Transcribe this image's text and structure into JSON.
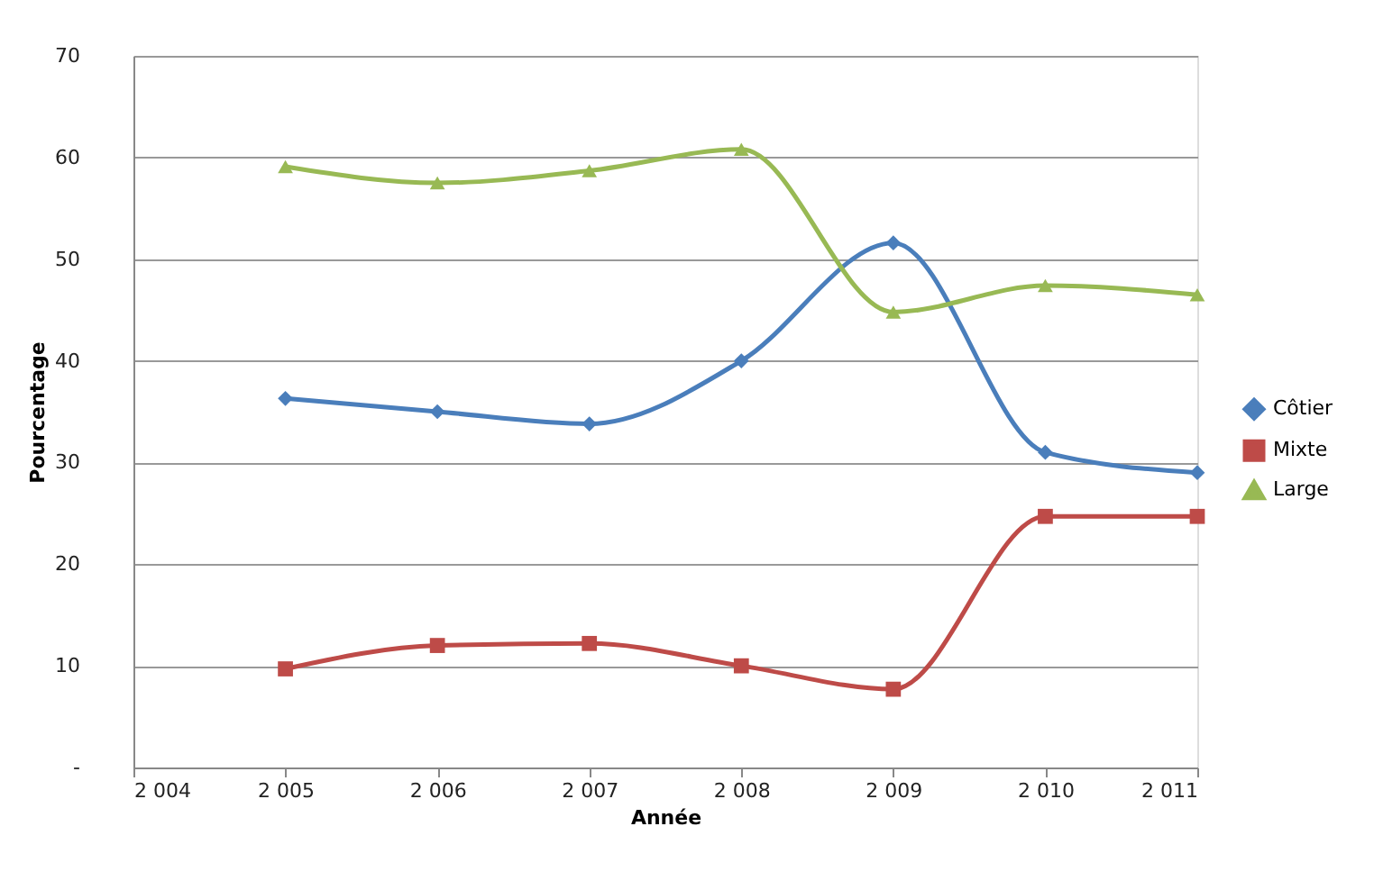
{
  "chart_data": {
    "type": "line",
    "xlabel": "Année",
    "ylabel": "Pourcentage",
    "x": [
      2005,
      2006,
      2007,
      2008,
      2009,
      2010,
      2011
    ],
    "xlim": [
      2004,
      2011
    ],
    "xticks": [
      {
        "value": 2004,
        "label": "2 004"
      },
      {
        "value": 2005,
        "label": "2 005"
      },
      {
        "value": 2006,
        "label": "2 006"
      },
      {
        "value": 2007,
        "label": "2 007"
      },
      {
        "value": 2008,
        "label": "2 008"
      },
      {
        "value": 2009,
        "label": "2 009"
      },
      {
        "value": 2010,
        "label": "2 010"
      },
      {
        "value": 2011,
        "label": "2 011"
      }
    ],
    "ylim": [
      0,
      70
    ],
    "yticks": [
      {
        "value": 0,
        "label": "-"
      },
      10,
      20,
      30,
      40,
      50,
      60,
      70
    ],
    "grid": "y",
    "legend": "right",
    "series": [
      {
        "name": "Côtier",
        "color": "#4a7ebb",
        "marker": "diamond",
        "values": [
          36.3,
          35.0,
          33.8,
          40.0,
          51.6,
          31.0,
          29.0
        ]
      },
      {
        "name": "Mixte",
        "color": "#be4b48",
        "marker": "square",
        "values": [
          9.7,
          12.0,
          12.2,
          10.0,
          7.7,
          24.7,
          24.7
        ]
      },
      {
        "name": "Large",
        "color": "#98b954",
        "marker": "triangle",
        "values": [
          59.1,
          57.5,
          58.7,
          60.8,
          44.8,
          47.4,
          46.5
        ]
      }
    ]
  }
}
